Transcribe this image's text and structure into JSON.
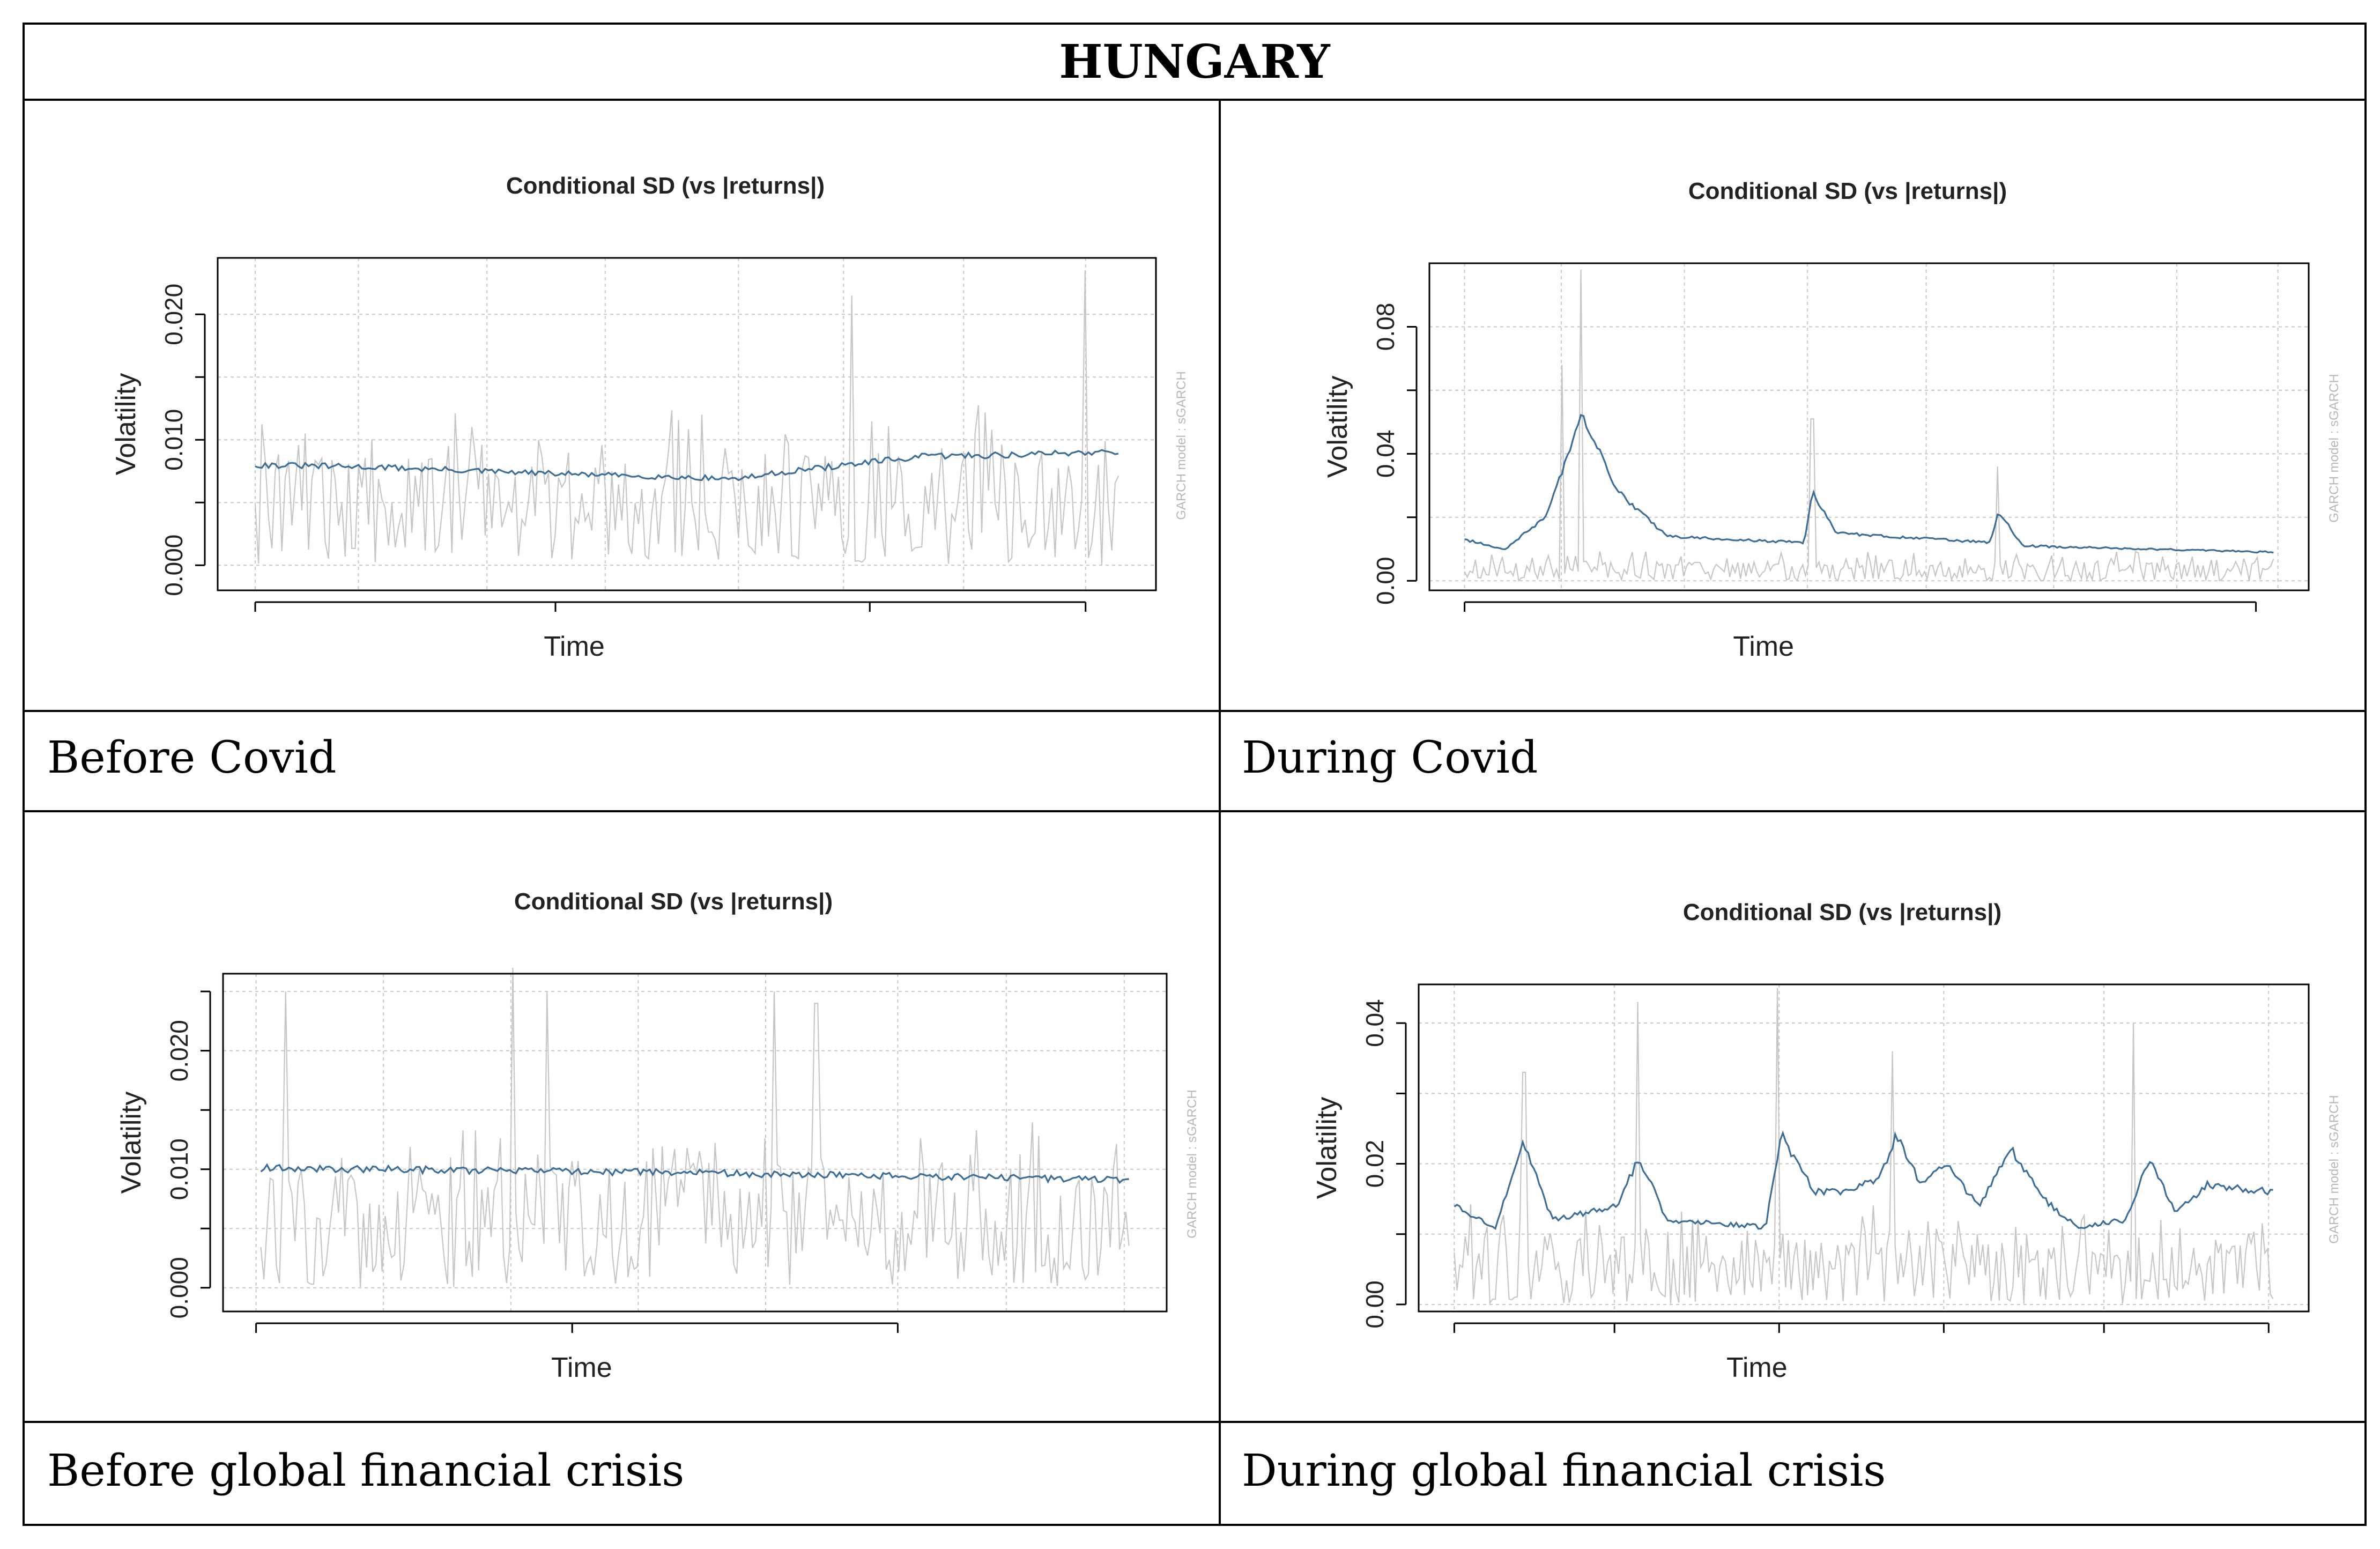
{
  "title": "HUNGARY",
  "colors": {
    "grid": "#c8c8c8",
    "abs_returns": "#c6c6c6",
    "volatility": "#3d6e98",
    "border": "#000000"
  },
  "panels": [
    {
      "caption": "Before Covid"
    },
    {
      "caption": "During Covid"
    },
    {
      "caption": "Before global financial crisis"
    },
    {
      "caption": "During global financial crisis"
    }
  ],
  "chart_data": [
    {
      "type": "line",
      "title": "Conditional SD (vs |returns|)",
      "xlabel": "Time",
      "ylabel": "Volatility",
      "side_note": "GARCH model : sGARCH",
      "ylim": [
        -0.002,
        0.0245
      ],
      "yticks": [
        0.0,
        0.005,
        0.01,
        0.015,
        0.02
      ],
      "ytick_labels": [
        "0.000",
        "",
        "0.010",
        "",
        "0.020"
      ],
      "xtick_positions": [
        0.04,
        0.36,
        0.695,
        0.925
      ],
      "xgrid_positions": [
        0.04,
        0.15,
        0.287,
        0.413,
        0.555,
        0.667,
        0.795,
        0.925
      ],
      "n_points": 260,
      "series": [
        {
          "name": "|returns|",
          "color_key": "abs_returns",
          "base": 0.0045,
          "mult": 0.009,
          "peaks": [
            [
              0.69,
              0.0215
            ],
            [
              0.96,
              0.0235
            ]
          ]
        },
        {
          "name": "Conditional SD",
          "color_key": "volatility",
          "knots": [
            [
              0,
              0.008
            ],
            [
              0.15,
              0.0078
            ],
            [
              0.3,
              0.0074
            ],
            [
              0.5,
              0.007
            ],
            [
              0.56,
              0.0069
            ],
            [
              0.62,
              0.0075
            ],
            [
              0.78,
              0.0087
            ],
            [
              0.88,
              0.0088
            ],
            [
              1.0,
              0.0091
            ]
          ]
        }
      ]
    },
    {
      "type": "line",
      "title": "Conditional SD (vs |returns|)",
      "xlabel": "Time",
      "ylabel": "Volatility",
      "side_note": "GARCH model : sGARCH",
      "ylim": [
        -0.003,
        0.1
      ],
      "yticks": [
        0.0,
        0.02,
        0.04,
        0.06,
        0.08
      ],
      "ytick_labels": [
        "0.00",
        "",
        "0.04",
        "",
        "0.08"
      ],
      "xtick_positions": [
        0.04,
        0.94
      ],
      "xgrid_positions": [
        0.04,
        0.15,
        0.29,
        0.43,
        0.565,
        0.71,
        0.85,
        0.965
      ],
      "n_points": 300,
      "series": [
        {
          "name": "|returns|",
          "color_key": "abs_returns",
          "base": 0.004,
          "mult": 0.006,
          "peaks": [
            [
              0.12,
              0.068
            ],
            [
              0.145,
              0.098
            ],
            [
              0.43,
              0.051
            ],
            [
              0.66,
              0.036
            ]
          ]
        },
        {
          "name": "Conditional SD",
          "color_key": "volatility",
          "knots": [
            [
              0,
              0.013
            ],
            [
              0.05,
              0.01
            ],
            [
              0.1,
              0.02
            ],
            [
              0.145,
              0.052
            ],
            [
              0.19,
              0.028
            ],
            [
              0.25,
              0.014
            ],
            [
              0.42,
              0.012
            ],
            [
              0.43,
              0.028
            ],
            [
              0.46,
              0.015
            ],
            [
              0.65,
              0.012
            ],
            [
              0.66,
              0.022
            ],
            [
              0.69,
              0.011
            ],
            [
              1.0,
              0.009
            ]
          ]
        }
      ]
    },
    {
      "type": "line",
      "title": "Conditional SD (vs |returns|)",
      "xlabel": "Time",
      "ylabel": "Volatility",
      "side_note": "GARCH model : sGARCH",
      "ylim": [
        -0.002,
        0.0265
      ],
      "yticks": [
        0.0,
        0.005,
        0.01,
        0.015,
        0.02,
        0.025
      ],
      "ytick_labels": [
        "0.000",
        "",
        "0.010",
        "",
        "0.020",
        ""
      ],
      "xtick_positions": [
        0.035,
        0.37,
        0.715
      ],
      "xgrid_positions": [
        0.035,
        0.17,
        0.305,
        0.44,
        0.575,
        0.715,
        0.83,
        0.955
      ],
      "n_points": 280,
      "series": [
        {
          "name": "|returns|",
          "color_key": "abs_returns",
          "base": 0.005,
          "mult": 0.01,
          "peaks": [
            [
              0.03,
              0.025
            ],
            [
              0.29,
              0.027
            ],
            [
              0.33,
              0.025
            ],
            [
              0.59,
              0.025
            ],
            [
              0.64,
              0.024
            ]
          ]
        },
        {
          "name": "Conditional SD",
          "color_key": "volatility",
          "knots": [
            [
              0,
              0.0101
            ],
            [
              0.5,
              0.0097
            ],
            [
              1.0,
              0.0091
            ]
          ]
        }
      ]
    },
    {
      "type": "line",
      "title": "Conditional SD (vs |returns|)",
      "xlabel": "Time",
      "ylabel": "Volatility",
      "side_note": "GARCH model : sGARCH",
      "ylim": [
        -0.001,
        0.0455
      ],
      "yticks": [
        0.0,
        0.01,
        0.02,
        0.03,
        0.04
      ],
      "ytick_labels": [
        "0.00",
        "",
        "0.02",
        "",
        "0.04"
      ],
      "xtick_positions": [
        0.04,
        0.22,
        0.405,
        0.59,
        0.77,
        0.955
      ],
      "xgrid_positions": [
        0.04,
        0.22,
        0.405,
        0.59,
        0.77,
        0.955
      ],
      "n_points": 300,
      "series": [
        {
          "name": "|returns|",
          "color_key": "abs_returns",
          "base": 0.005,
          "mult": 0.01,
          "peaks": [
            [
              0.085,
              0.033
            ],
            [
              0.225,
              0.043
            ],
            [
              0.395,
              0.045
            ],
            [
              0.535,
              0.036
            ],
            [
              0.83,
              0.04
            ]
          ]
        },
        {
          "name": "Conditional SD",
          "color_key": "volatility",
          "knots": [
            [
              0,
              0.014
            ],
            [
              0.05,
              0.011
            ],
            [
              0.085,
              0.023
            ],
            [
              0.12,
              0.012
            ],
            [
              0.2,
              0.014
            ],
            [
              0.225,
              0.021
            ],
            [
              0.26,
              0.012
            ],
            [
              0.38,
              0.011
            ],
            [
              0.4,
              0.024
            ],
            [
              0.44,
              0.016
            ],
            [
              0.48,
              0.016
            ],
            [
              0.52,
              0.018
            ],
            [
              0.54,
              0.024
            ],
            [
              0.57,
              0.017
            ],
            [
              0.6,
              0.02
            ],
            [
              0.64,
              0.014
            ],
            [
              0.68,
              0.022
            ],
            [
              0.72,
              0.015
            ],
            [
              0.76,
              0.011
            ],
            [
              0.82,
              0.012
            ],
            [
              0.85,
              0.021
            ],
            [
              0.88,
              0.013
            ],
            [
              0.92,
              0.017
            ],
            [
              1.0,
              0.016
            ]
          ]
        }
      ]
    }
  ]
}
